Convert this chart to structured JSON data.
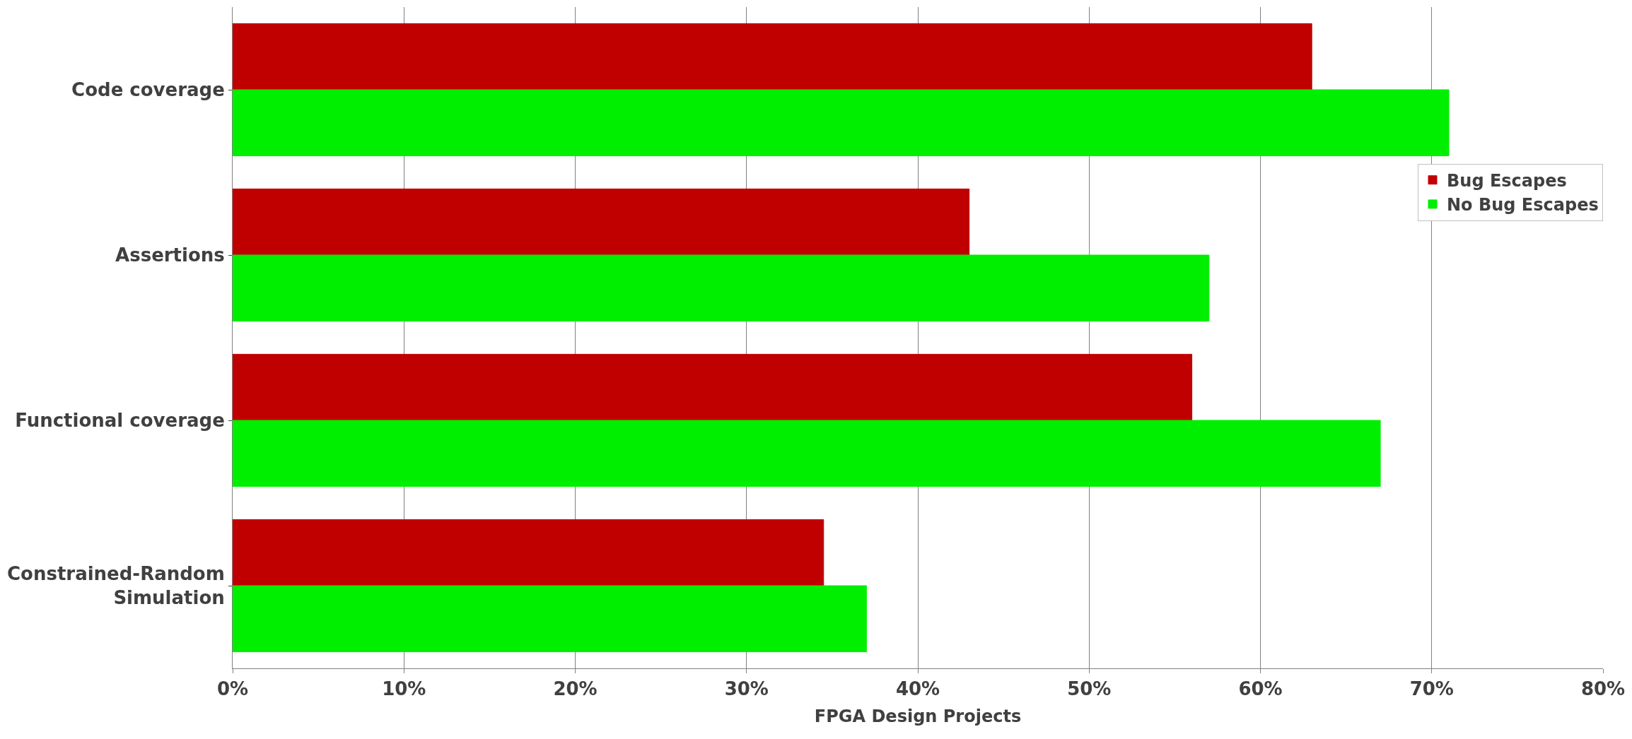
{
  "chart_data": {
    "type": "bar",
    "orientation": "horizontal",
    "xlabel": "FPGA Design Projects",
    "categories": [
      "Code coverage",
      "Assertions",
      "Functional coverage",
      "Constrained-Random\nSimulation"
    ],
    "series": [
      {
        "name": "Bug Escapes",
        "color": "#c00000",
        "values": [
          63,
          43,
          56,
          34.5
        ]
      },
      {
        "name": "No Bug Escapes",
        "color": "#00ee00",
        "values": [
          71,
          57,
          67,
          37
        ]
      }
    ],
    "xlim": [
      0,
      80
    ],
    "xticks": [
      {
        "value": 0,
        "label": "0%"
      },
      {
        "value": 10,
        "label": "10%"
      },
      {
        "value": 20,
        "label": "20%"
      },
      {
        "value": 30,
        "label": "30%"
      },
      {
        "value": 40,
        "label": "40%"
      },
      {
        "value": 50,
        "label": "50%"
      },
      {
        "value": 60,
        "label": "60%"
      },
      {
        "value": 70,
        "label": "70%"
      },
      {
        "value": 80,
        "label": "80%"
      }
    ],
    "grid": "x",
    "legend": "right"
  }
}
